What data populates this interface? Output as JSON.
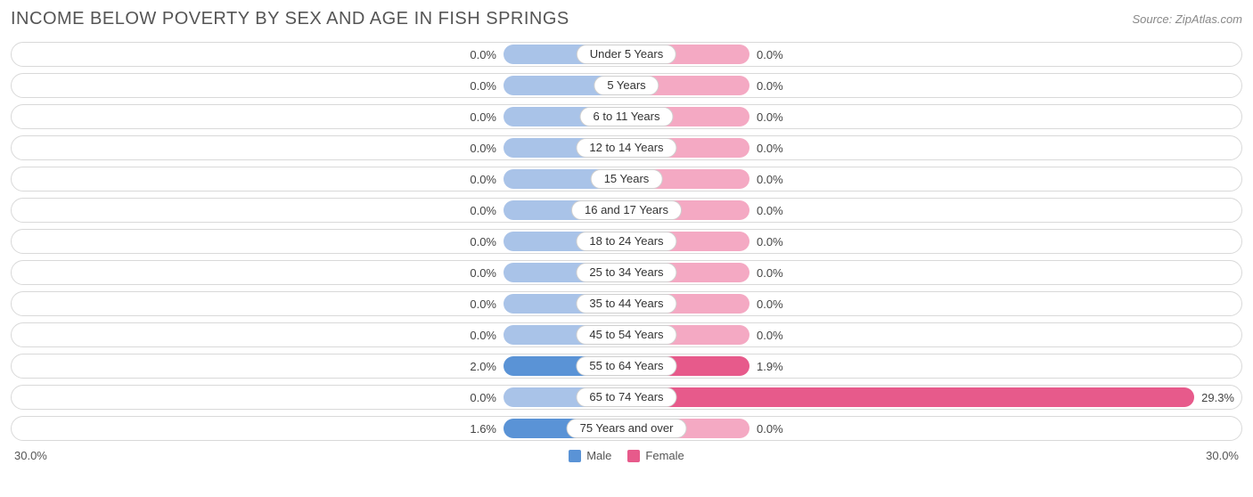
{
  "chart": {
    "type": "diverging-bar",
    "title": "INCOME BELOW POVERTY BY SEX AND AGE IN FISH SPRINGS",
    "source": "Source: ZipAtlas.com",
    "axis_max": 30.0,
    "axis_max_label_left": "30.0%",
    "axis_max_label_right": "30.0%",
    "min_bar_pct": 20.0,
    "label_half_width_pct": 10.5,
    "colors": {
      "male_low": "#a9c3e8",
      "male_high": "#5a93d6",
      "female_low": "#f4a9c3",
      "female_high": "#e75a8b",
      "track_border": "#d9d9d9",
      "pill_border": "#cfcfcf",
      "text": "#444444",
      "title_text": "#555555",
      "background": "#ffffff"
    },
    "legend": [
      {
        "label": "Male",
        "color": "#5a93d6"
      },
      {
        "label": "Female",
        "color": "#e75a8b"
      }
    ],
    "rows": [
      {
        "category": "Under 5 Years",
        "male": 0.0,
        "female": 0.0
      },
      {
        "category": "5 Years",
        "male": 0.0,
        "female": 0.0
      },
      {
        "category": "6 to 11 Years",
        "male": 0.0,
        "female": 0.0
      },
      {
        "category": "12 to 14 Years",
        "male": 0.0,
        "female": 0.0
      },
      {
        "category": "15 Years",
        "male": 0.0,
        "female": 0.0
      },
      {
        "category": "16 and 17 Years",
        "male": 0.0,
        "female": 0.0
      },
      {
        "category": "18 to 24 Years",
        "male": 0.0,
        "female": 0.0
      },
      {
        "category": "25 to 34 Years",
        "male": 0.0,
        "female": 0.0
      },
      {
        "category": "35 to 44 Years",
        "male": 0.0,
        "female": 0.0
      },
      {
        "category": "45 to 54 Years",
        "male": 0.0,
        "female": 0.0
      },
      {
        "category": "55 to 64 Years",
        "male": 2.0,
        "female": 1.9
      },
      {
        "category": "65 to 74 Years",
        "male": 0.0,
        "female": 29.3
      },
      {
        "category": "75 Years and over",
        "male": 1.6,
        "female": 0.0
      }
    ],
    "fontsize": {
      "title": 20,
      "labels": 13
    }
  }
}
